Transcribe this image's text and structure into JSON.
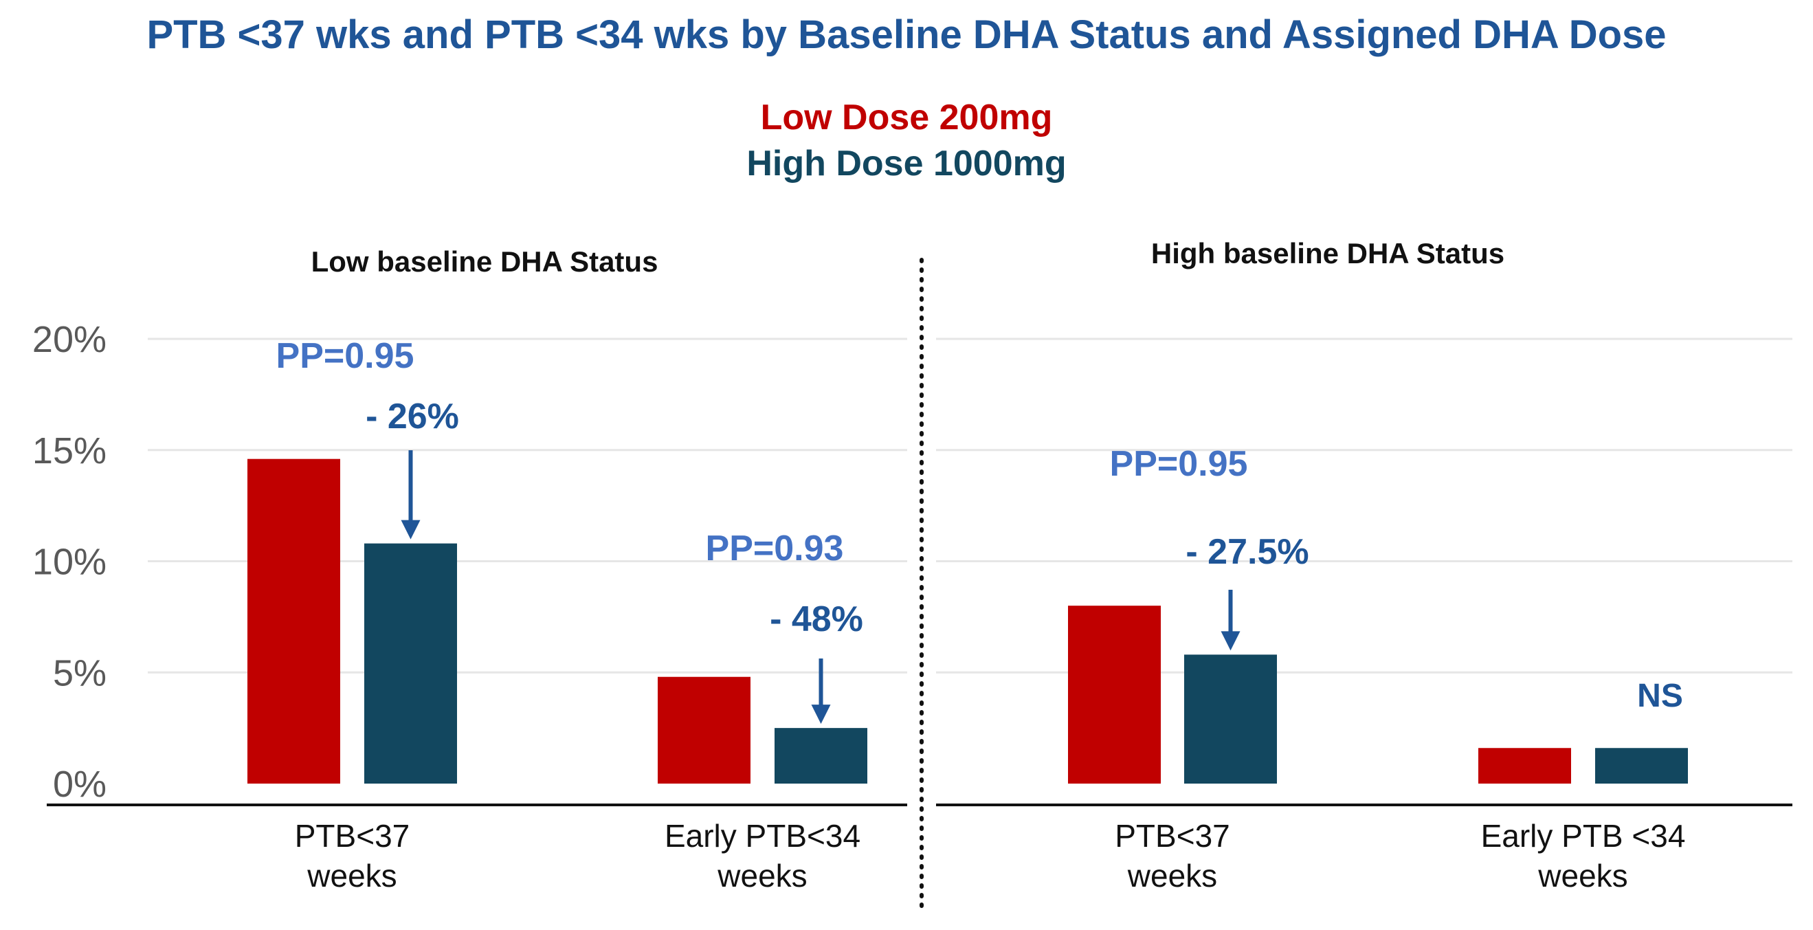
{
  "colors": {
    "title": "#1F5597",
    "low_dose": "#C00000",
    "high_dose": "#12475F",
    "pp_text": "#4472C4",
    "annotation": "#1F5597",
    "grid": "#E6E6E6",
    "axis": "#111111"
  },
  "chart_data": {
    "type": "bar",
    "title": "PTB <37 wks and PTB <34 wks by Baseline DHA Status and Assigned DHA Dose",
    "legend": [
      {
        "name": "Low Dose 200mg",
        "color": "#C00000"
      },
      {
        "name": "High Dose 1000mg",
        "color": "#12475F"
      }
    ],
    "ylim": [
      0,
      20
    ],
    "yticks": [
      "0%",
      "5%",
      "10%",
      "15%",
      "20%"
    ],
    "ytick_values": [
      0,
      5,
      10,
      15,
      20
    ],
    "grid": true,
    "legend_placement": "top-center",
    "panels": [
      {
        "title": "Low baseline DHA Status",
        "categories": [
          {
            "label_line1": "PTB<37",
            "label_line2": "weeks"
          },
          {
            "label_line1": "Early PTB<34",
            "label_line2": "weeks"
          }
        ],
        "series": [
          {
            "name": "Low Dose 200mg",
            "values": [
              14.6,
              4.8
            ]
          },
          {
            "name": "High Dose 1000mg",
            "values": [
              10.8,
              2.5
            ]
          }
        ],
        "annotations": [
          {
            "category": 0,
            "pp": "PP=0.95",
            "change": "- 26%"
          },
          {
            "category": 1,
            "pp": "PP=0.93",
            "change": "- 48%"
          }
        ]
      },
      {
        "title": "High baseline DHA Status",
        "categories": [
          {
            "label_line1": "PTB<37",
            "label_line2": "weeks"
          },
          {
            "label_line1": "Early PTB <34",
            "label_line2": "weeks"
          }
        ],
        "series": [
          {
            "name": "Low Dose 200mg",
            "values": [
              8.0,
              1.6
            ]
          },
          {
            "name": "High Dose 1000mg",
            "values": [
              5.8,
              1.6
            ]
          }
        ],
        "annotations": [
          {
            "category": 0,
            "pp": "PP=0.95",
            "change": "- 27.5%"
          },
          {
            "category": 1,
            "label": "NS"
          }
        ]
      }
    ]
  }
}
